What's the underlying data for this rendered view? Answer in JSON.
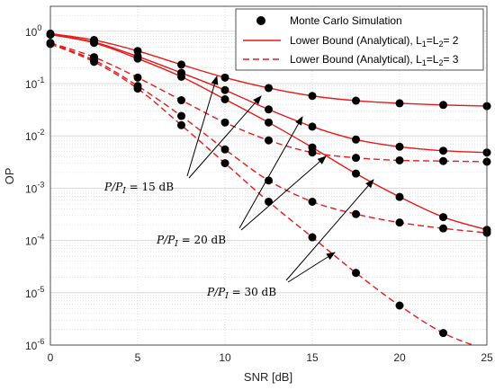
{
  "chart_data": {
    "type": "line",
    "xlabel": "SNR [dB]",
    "ylabel": "OP",
    "xlim": [
      0,
      25
    ],
    "ylim": [
      1e-06,
      3
    ],
    "yscale": "log",
    "grid": true,
    "legend_position": "top-right",
    "x_ticks": [
      "0",
      "5",
      "10",
      "15",
      "20",
      "25"
    ],
    "y_ticks": [
      {
        "base": "10",
        "exp": "0"
      },
      {
        "base": "10",
        "exp": "-1"
      },
      {
        "base": "10",
        "exp": "-2"
      },
      {
        "base": "10",
        "exp": "-3"
      },
      {
        "base": "10",
        "exp": "-4"
      },
      {
        "base": "10",
        "exp": "-5"
      },
      {
        "base": "10",
        "exp": "-6"
      }
    ],
    "legend": [
      {
        "label": "Monte Carlo Simulation",
        "marker": "dot"
      },
      {
        "label_main": "Lower Bound (Analytical), L",
        "sub1": "1",
        "mid": "=L",
        "sub2": "2",
        "tail": "= 2",
        "style": "solid"
      },
      {
        "label_main": "Lower Bound (Analytical), L",
        "sub1": "1",
        "mid": "=L",
        "sub2": "2",
        "tail": "= 3",
        "style": "dashed"
      }
    ],
    "colors": {
      "line": "#e8191a",
      "marker": "#000000",
      "grid": "#d0d0d0"
    },
    "x_sim": [
      0,
      2.5,
      5,
      7.5,
      10,
      12.5,
      15,
      17.5,
      20,
      22.5,
      25
    ],
    "series": [
      {
        "style": "solid",
        "values": [
          0.9,
          0.68,
          0.42,
          0.23,
          0.13,
          0.082,
          0.058,
          0.047,
          0.042,
          0.039,
          0.037
        ]
      },
      {
        "style": "solid",
        "values": [
          0.88,
          0.62,
          0.33,
          0.16,
          0.075,
          0.032,
          0.015,
          0.0085,
          0.0062,
          0.0052,
          0.0048
        ]
      },
      {
        "style": "solid",
        "values": [
          0.86,
          0.6,
          0.3,
          0.135,
          0.05,
          0.018,
          0.006,
          0.0019,
          0.00068,
          0.00028,
          0.00016
        ]
      },
      {
        "style": "dashed",
        "values": [
          0.6,
          0.32,
          0.13,
          0.048,
          0.018,
          0.0082,
          0.0048,
          0.0038,
          0.0034,
          0.0033,
          0.0032
        ]
      },
      {
        "style": "dashed",
        "values": [
          0.58,
          0.28,
          0.09,
          0.024,
          0.0055,
          0.0014,
          0.00055,
          0.00032,
          0.00022,
          0.00017,
          0.00014
        ]
      },
      {
        "style": "dashed",
        "values": [
          0.57,
          0.26,
          0.08,
          0.016,
          0.003,
          0.00055,
          0.000115,
          2.4e-05,
          5.7e-06,
          1.7e-06,
          8e-07
        ]
      }
    ],
    "annotations": [
      {
        "lhs": "P/P",
        "sub": "I",
        "rhs": " = 15 dB"
      },
      {
        "lhs": "P/P",
        "sub": "I",
        "rhs": " = 20 dB"
      },
      {
        "lhs": "P/P",
        "sub": "I",
        "rhs": " = 30 dB"
      }
    ]
  }
}
